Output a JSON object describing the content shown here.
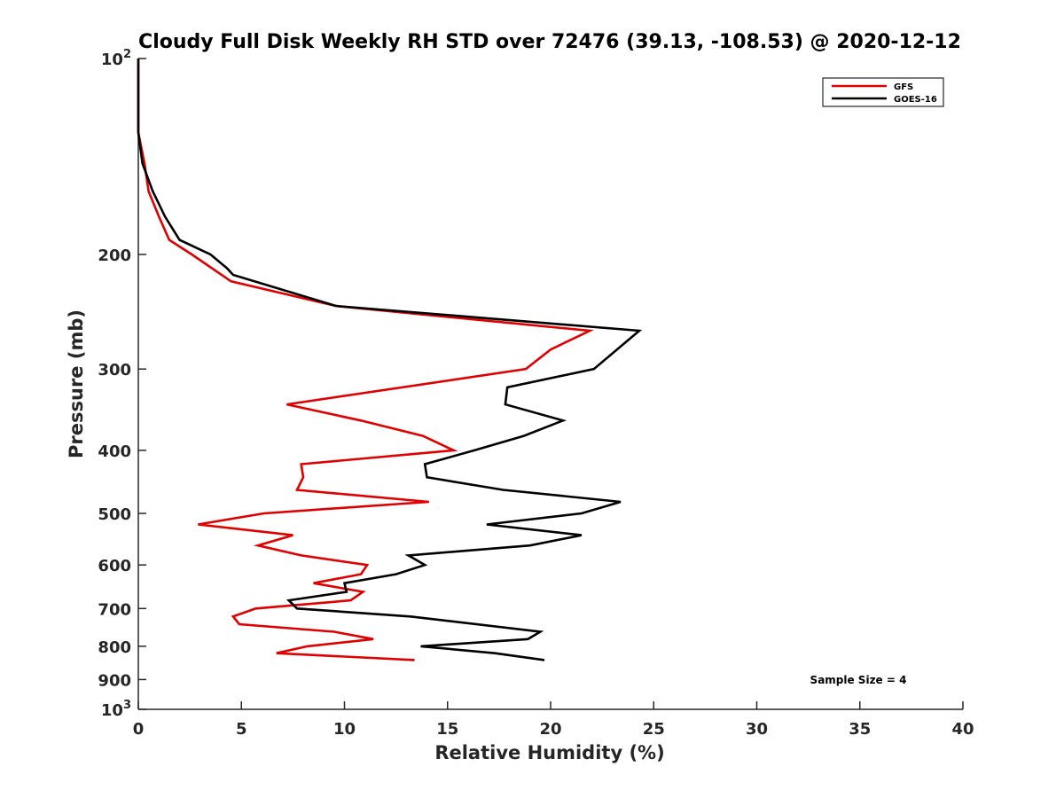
{
  "chart_data": {
    "type": "line",
    "title": "Cloudy Full Disk Weekly RH STD over 72476 (39.13, -108.53) @ 2020-12-12",
    "xlabel": "Relative Humidity (%)",
    "ylabel": "Pressure (mb)",
    "xlim": [
      0,
      40
    ],
    "ylim": [
      100,
      1000
    ],
    "y_scale": "log",
    "y_reversed": true,
    "grid": false,
    "legend_position": "top-right",
    "x_ticks": [
      "0",
      "5",
      "10",
      "15",
      "20",
      "25",
      "30",
      "35",
      "40"
    ],
    "y_ticks": [
      {
        "value": 100,
        "base": "10",
        "exp": "2"
      },
      {
        "value": 200,
        "label": "200"
      },
      {
        "value": 300,
        "label": "300"
      },
      {
        "value": 400,
        "label": "400"
      },
      {
        "value": 500,
        "label": "500"
      },
      {
        "value": 600,
        "label": "600"
      },
      {
        "value": 700,
        "label": "700"
      },
      {
        "value": 800,
        "label": "800"
      },
      {
        "value": 900,
        "label": "900"
      },
      {
        "value": 1000,
        "base": "10",
        "exp": "3"
      }
    ],
    "series": [
      {
        "name": "GFS",
        "color": "#e00000",
        "points": [
          [
            0.0,
            100
          ],
          [
            0.0,
            115
          ],
          [
            0.0,
            130
          ],
          [
            0.3,
            145
          ],
          [
            0.5,
            160
          ],
          [
            1.0,
            175
          ],
          [
            1.5,
            190
          ],
          [
            2.6,
            200
          ],
          [
            4.5,
            220
          ],
          [
            9.6,
            240
          ],
          [
            21.9,
            262
          ],
          [
            20.0,
            280
          ],
          [
            18.8,
            300
          ],
          [
            7.2,
            340
          ],
          [
            10.8,
            360
          ],
          [
            13.8,
            380
          ],
          [
            15.3,
            400
          ],
          [
            7.9,
            420
          ],
          [
            8.0,
            440
          ],
          [
            7.7,
            460
          ],
          [
            14.1,
            480
          ],
          [
            6.1,
            500
          ],
          [
            2.9,
            520
          ],
          [
            7.5,
            540
          ],
          [
            5.8,
            560
          ],
          [
            7.9,
            580
          ],
          [
            11.1,
            600
          ],
          [
            10.8,
            620
          ],
          [
            8.5,
            640
          ],
          [
            10.9,
            660
          ],
          [
            10.3,
            680
          ],
          [
            5.7,
            700
          ],
          [
            4.6,
            720
          ],
          [
            4.9,
            740
          ],
          [
            9.5,
            760
          ],
          [
            11.4,
            780
          ],
          [
            8.2,
            800
          ],
          [
            6.7,
            820
          ],
          [
            13.4,
            840
          ]
        ]
      },
      {
        "name": "GOES-16",
        "color": "#000000",
        "points": [
          [
            0.0,
            100
          ],
          [
            0.0,
            115
          ],
          [
            0.0,
            130
          ],
          [
            0.2,
            145
          ],
          [
            0.7,
            160
          ],
          [
            1.3,
            175
          ],
          [
            2.0,
            190
          ],
          [
            3.5,
            200
          ],
          [
            4.3,
            210
          ],
          [
            4.6,
            215
          ],
          [
            9.6,
            240
          ],
          [
            24.3,
            262
          ],
          [
            22.1,
            300
          ],
          [
            17.9,
            320
          ],
          [
            17.8,
            340
          ],
          [
            20.6,
            360
          ],
          [
            18.7,
            380
          ],
          [
            16.3,
            400
          ],
          [
            13.9,
            420
          ],
          [
            14.0,
            440
          ],
          [
            17.7,
            460
          ],
          [
            23.4,
            480
          ],
          [
            21.5,
            500
          ],
          [
            16.9,
            520
          ],
          [
            21.5,
            540
          ],
          [
            19.0,
            560
          ],
          [
            13.1,
            580
          ],
          [
            13.9,
            600
          ],
          [
            12.5,
            620
          ],
          [
            10.0,
            640
          ],
          [
            10.1,
            660
          ],
          [
            7.3,
            680
          ],
          [
            7.7,
            700
          ],
          [
            13.2,
            720
          ],
          [
            19.5,
            760
          ],
          [
            18.9,
            780
          ],
          [
            13.7,
            800
          ],
          [
            17.3,
            820
          ],
          [
            19.7,
            840
          ]
        ]
      }
    ],
    "annotation": "Sample Size = 4"
  }
}
